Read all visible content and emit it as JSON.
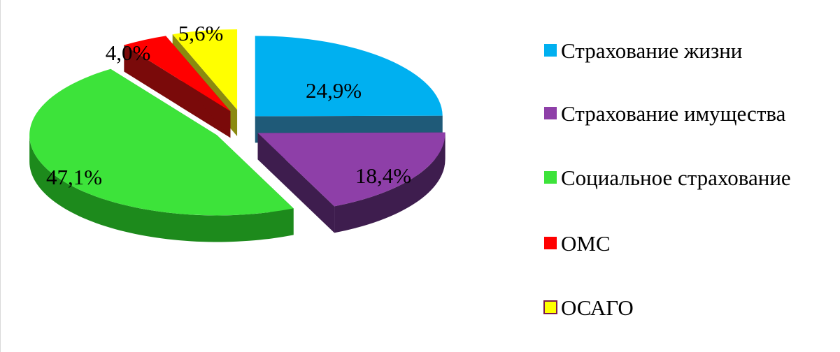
{
  "chart_data": {
    "type": "pie",
    "title": "",
    "categories": [
      "Страхование жизни",
      "Страхование имущества",
      "Социальное страхование",
      "ОМС",
      "ОСАГО"
    ],
    "values": [
      24.9,
      18.4,
      47.1,
      4.0,
      5.6
    ],
    "value_labels": [
      "24,9%",
      "18,4%",
      "47,1%",
      "4,0%",
      "5,6%"
    ],
    "unit": "%",
    "style": "3d-exploded",
    "legend_position": "right",
    "colors": [
      "#00B0F0",
      "#8E3FA8",
      "#3DE33A",
      "#FF0000",
      "#FFFF00"
    ],
    "side_colors": [
      "#1F5A78",
      "#3E1D4E",
      "#1D8A1C",
      "#7A0A0A",
      "#8A8A10"
    ]
  }
}
